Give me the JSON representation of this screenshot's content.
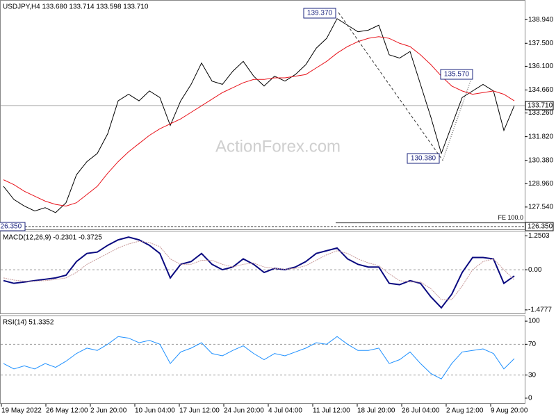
{
  "chart_data": [
    {
      "type": "line",
      "title": "USDJPY,H4 133.680 133.714 133.598 133.710",
      "watermark": "ActionForex.com",
      "series": [
        {
          "color": "#000000",
          "values": [
            128.8,
            128.0,
            127.6,
            127.3,
            127.5,
            127.2,
            127.8,
            129.5,
            130.3,
            130.8,
            132.0,
            134.0,
            134.4,
            134.0,
            134.6,
            134.2,
            132.5,
            134.0,
            135.0,
            136.3,
            135.2,
            135.0,
            135.8,
            136.4,
            135.5,
            134.9,
            135.5,
            135.2,
            135.6,
            136.2,
            137.2,
            137.8,
            139.0,
            138.6,
            138.2,
            138.3,
            138.6,
            136.8,
            136.6,
            137.0,
            135.0,
            133.0,
            130.8,
            132.5,
            134.2,
            134.6,
            135.0,
            134.6,
            132.2,
            133.71
          ]
        },
        {
          "color": "#e8131b",
          "values": [
            129.2,
            128.9,
            128.5,
            128.2,
            127.9,
            127.7,
            127.6,
            127.8,
            128.3,
            128.8,
            129.6,
            130.3,
            130.9,
            131.4,
            131.9,
            132.3,
            132.6,
            132.9,
            133.3,
            133.7,
            134.1,
            134.5,
            134.8,
            135.1,
            135.3,
            135.3,
            135.4,
            135.4,
            135.5,
            135.6,
            136.0,
            136.4,
            136.9,
            137.3,
            137.6,
            137.8,
            137.9,
            137.8,
            137.5,
            137.3,
            136.8,
            136.2,
            135.5,
            134.9,
            134.6,
            134.4,
            134.5,
            134.6,
            134.4,
            134.0
          ]
        }
      ],
      "ylim": [
        126.14,
        140.09
      ],
      "yticks": [
        {
          "value": 138.94,
          "label": "138.940"
        },
        {
          "value": 137.5,
          "label": "137.500"
        },
        {
          "value": 136.1,
          "label": "136.100"
        },
        {
          "value": 134.66,
          "label": "134.660"
        },
        {
          "value": 133.26,
          "label": "133.260"
        },
        {
          "value": 131.82,
          "label": "131.820"
        },
        {
          "value": 130.38,
          "label": "130.380"
        },
        {
          "value": 128.96,
          "label": "128.960"
        },
        {
          "value": 127.54,
          "label": "127.540"
        }
      ],
      "annotations": [
        {
          "value": 139.37,
          "label": "139.370"
        },
        {
          "value": 130.38,
          "label": "130.380"
        },
        {
          "value": 135.57,
          "label": "135.570"
        }
      ],
      "price_line": {
        "value": 133.71,
        "label": "133.710"
      },
      "support_line": {
        "value": 126.35,
        "label": "126.350"
      },
      "fe_line": {
        "value": 126.58,
        "label": "FE 100.0"
      }
    },
    {
      "type": "line",
      "title": "MACD(12,26,9) -0.2301 -0.3725",
      "series": [
        {
          "color": "#0a0a80",
          "values": [
            -0.4,
            -0.5,
            -0.45,
            -0.4,
            -0.35,
            -0.3,
            -0.2,
            0.3,
            0.6,
            0.65,
            0.9,
            1.1,
            1.2,
            1.1,
            0.9,
            0.6,
            -0.3,
            0.2,
            0.3,
            0.6,
            0.2,
            0,
            0.1,
            0.4,
            0.2,
            -0.1,
            0.05,
            0,
            0.1,
            0.3,
            0.6,
            0.7,
            0.8,
            0.4,
            0.2,
            0.1,
            0.1,
            -0.5,
            -0.55,
            -0.4,
            -0.5,
            -1.0,
            -1.4,
            -0.9,
            -0.1,
            0.45,
            0.45,
            0.4,
            -0.5,
            -0.2301
          ]
        },
        {
          "color": "#c89a9a",
          "values": [
            -0.3,
            -0.38,
            -0.42,
            -0.42,
            -0.4,
            -0.36,
            -0.3,
            -0.1,
            0.2,
            0.4,
            0.6,
            0.8,
            0.95,
            1.05,
            1.0,
            0.85,
            0.4,
            0.2,
            0.2,
            0.35,
            0.35,
            0.2,
            0.1,
            0.2,
            0.25,
            0.1,
            0.05,
            0.02,
            0.05,
            0.15,
            0.35,
            0.55,
            0.7,
            0.6,
            0.4,
            0.25,
            0.15,
            -0.15,
            -0.4,
            -0.45,
            -0.45,
            -0.7,
            -1.1,
            -1.1,
            -0.6,
            0.0,
            0.3,
            0.4,
            0.0,
            -0.3725
          ]
        }
      ],
      "ylim": [
        -1.634,
        1.41
      ],
      "yticks": [
        1.2503,
        {
          "value": 0,
          "label": "0.00"
        },
        -1.4777
      ],
      "levels": [
        0
      ]
    },
    {
      "type": "line",
      "title": "RSI(14) 51.3352",
      "series": [
        {
          "color": "#1e90ff",
          "values": [
            45,
            38,
            42,
            38,
            45,
            40,
            48,
            58,
            65,
            62,
            70,
            80,
            78,
            72,
            75,
            70,
            45,
            60,
            65,
            72,
            58,
            55,
            62,
            68,
            58,
            50,
            58,
            55,
            60,
            65,
            72,
            70,
            80,
            70,
            62,
            62,
            65,
            45,
            50,
            60,
            45,
            32,
            25,
            45,
            60,
            62,
            64,
            58,
            38,
            51.3352
          ]
        }
      ],
      "ylim": [
        -7.3,
        106.4
      ],
      "yticks": [
        100,
        70,
        30,
        0
      ],
      "levels": [
        70,
        30
      ],
      "xtick_labels": [
        "19 May 2022",
        "26 May 12:00",
        "2 Jun 20:00",
        "10 Jun 04:00",
        "17 Jun 12:00",
        "24 Jun 20:00",
        "4 Jul 04:00",
        "11 Jul 12:00",
        "18 Jul 20:00",
        "26 Jul 04:00",
        "2 Aug 12:00",
        "9 Aug 20:00"
      ]
    }
  ]
}
